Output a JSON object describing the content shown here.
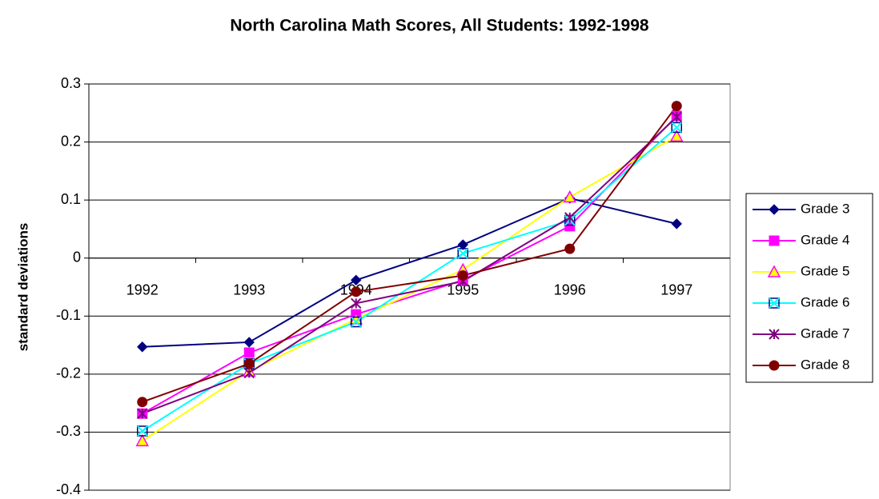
{
  "chart_data": {
    "type": "line",
    "title": "North Carolina Math Scores, All Students:  1992-1998",
    "y_label": "standard deviations",
    "categories": [
      "1992",
      "1993",
      "1994",
      "1995",
      "1996",
      "1997"
    ],
    "ylim": [
      -0.4,
      0.3
    ],
    "yticks": [
      -0.4,
      -0.3,
      -0.2,
      -0.1,
      0,
      0.1,
      0.2,
      0.3
    ],
    "grid": true,
    "legend": "right",
    "series": [
      {
        "name": "Grade 3",
        "color": "#000080",
        "marker": "diamond",
        "values": [
          -0.153,
          -0.145,
          -0.038,
          0.023,
          0.103,
          0.059
        ]
      },
      {
        "name": "Grade 4",
        "color": "#FF00FF",
        "marker": "square",
        "values": [
          -0.268,
          -0.163,
          -0.097,
          -0.038,
          0.055,
          0.245
        ]
      },
      {
        "name": "Grade 5",
        "color": "#FFFF00",
        "marker": "triangle",
        "values": [
          -0.315,
          -0.195,
          -0.105,
          -0.02,
          0.105,
          0.21
        ]
      },
      {
        "name": "Grade 6",
        "color": "#00FFFF",
        "marker": "square-x",
        "values": [
          -0.298,
          -0.182,
          -0.11,
          0.008,
          0.065,
          0.225
        ]
      },
      {
        "name": "Grade 7",
        "color": "#800080",
        "marker": "asterisk",
        "values": [
          -0.268,
          -0.198,
          -0.078,
          -0.04,
          0.07,
          0.243
        ]
      },
      {
        "name": "Grade 8",
        "color": "#800000",
        "marker": "circle",
        "values": [
          -0.248,
          -0.182,
          -0.058,
          -0.03,
          0.016,
          0.262
        ]
      }
    ]
  }
}
